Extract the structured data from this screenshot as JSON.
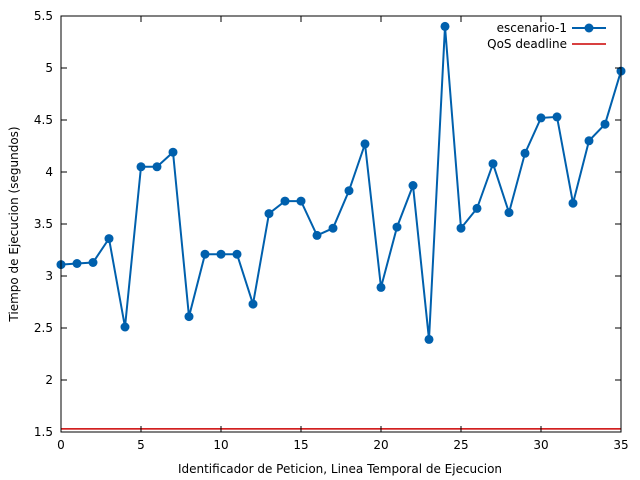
{
  "chart_data": {
    "type": "line",
    "title": "",
    "xlabel": "Identificador de Peticion, Linea Temporal de Ejecucion",
    "ylabel": "Tiempo de Ejecucion (segundos)",
    "xlim": [
      0,
      35
    ],
    "ylim": [
      1.5,
      5.5
    ],
    "xticks": [
      0,
      5,
      10,
      15,
      20,
      25,
      30,
      35
    ],
    "yticks": [
      1.5,
      2,
      2.5,
      3,
      3.5,
      4,
      4.5,
      5,
      5.5
    ],
    "grid": false,
    "legend_position": "top-right",
    "series": [
      {
        "name": "escenario-1",
        "color": "#0060ad",
        "marker": "circle",
        "x": [
          0,
          1,
          2,
          3,
          4,
          5,
          6,
          7,
          8,
          9,
          10,
          11,
          12,
          13,
          14,
          15,
          16,
          17,
          18,
          19,
          20,
          21,
          22,
          23,
          24,
          25,
          26,
          27,
          28,
          29,
          30,
          31,
          32,
          33,
          34,
          35
        ],
        "y": [
          3.11,
          3.12,
          3.13,
          3.36,
          2.51,
          4.05,
          4.05,
          4.19,
          2.61,
          3.21,
          3.21,
          3.21,
          2.73,
          3.6,
          3.72,
          3.72,
          3.39,
          3.46,
          3.82,
          4.27,
          2.89,
          3.47,
          3.87,
          2.39,
          5.4,
          3.46,
          3.65,
          4.08,
          3.61,
          4.18,
          4.52,
          4.53,
          3.7,
          4.3,
          4.46,
          4.97
        ]
      },
      {
        "name": "QoS deadline",
        "color": "#cc0000",
        "marker": "none",
        "x": [
          0,
          35
        ],
        "y": [
          1.53,
          1.53
        ]
      }
    ]
  }
}
